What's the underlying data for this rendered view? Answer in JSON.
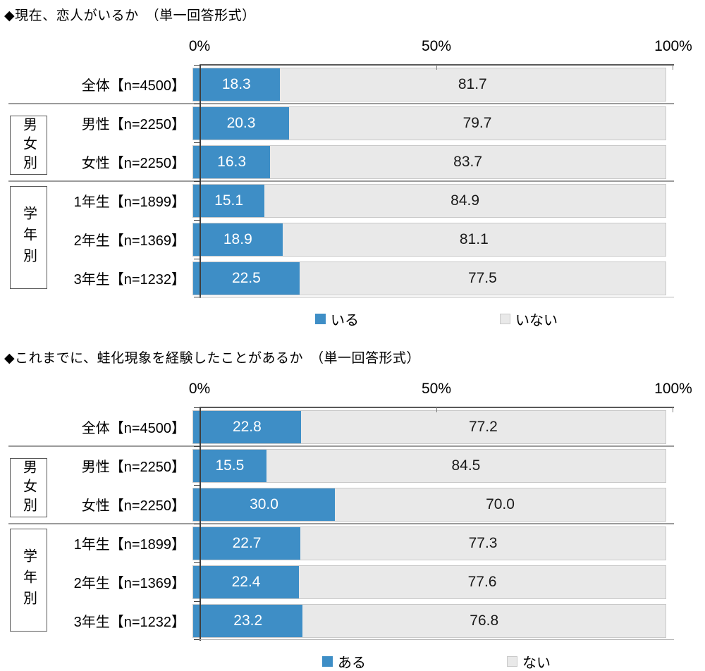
{
  "page_background": "#ffffff",
  "chart_data": [
    {
      "type": "bar",
      "orientation": "horizontal",
      "stacked": true,
      "unit": "%",
      "title": "◆現在、恋人がいるか　（単一回答形式）",
      "axis_ticks": [
        "0%",
        "50%",
        "100%"
      ],
      "xlim": [
        0,
        100
      ],
      "grid": false,
      "legend_position": "bottom",
      "categories": [
        "全体【n=4500】",
        "男性【n=2250】",
        "女性【n=2250】",
        "1年生【n=1899】",
        "2年生【n=1369】",
        "3年生【n=1232】"
      ],
      "group_labels": [
        {
          "label": "男女別",
          "rows": [
            1,
            2
          ]
        },
        {
          "label": "学年別",
          "rows": [
            3,
            5
          ]
        }
      ],
      "series": [
        {
          "name": "いる",
          "color": "#3e8ec6",
          "text_color": "#ffffff",
          "values": [
            18.3,
            20.3,
            16.3,
            15.1,
            18.9,
            22.5
          ]
        },
        {
          "name": "いない",
          "color": "#e9e9e9",
          "text_color": "#1a1a1a",
          "values": [
            81.7,
            79.7,
            83.7,
            84.9,
            81.1,
            77.5
          ]
        }
      ]
    },
    {
      "type": "bar",
      "orientation": "horizontal",
      "stacked": true,
      "unit": "%",
      "title": "◆これまでに、蛙化現象を経験したことがあるか　（単一回答形式）",
      "axis_ticks": [
        "0%",
        "50%",
        "100%"
      ],
      "xlim": [
        0,
        100
      ],
      "grid": false,
      "legend_position": "bottom",
      "categories": [
        "全体【n=4500】",
        "男性【n=2250】",
        "女性【n=2250】",
        "1年生【n=1899】",
        "2年生【n=1369】",
        "3年生【n=1232】"
      ],
      "group_labels": [
        {
          "label": "男女別",
          "rows": [
            1,
            2
          ]
        },
        {
          "label": "学年別",
          "rows": [
            3,
            5
          ]
        }
      ],
      "series": [
        {
          "name": "ある",
          "color": "#3e8ec6",
          "text_color": "#ffffff",
          "values": [
            22.8,
            15.5,
            30.0,
            22.7,
            22.4,
            23.2
          ]
        },
        {
          "name": "ない",
          "color": "#e9e9e9",
          "text_color": "#1a1a1a",
          "values": [
            77.2,
            84.5,
            70.0,
            77.3,
            77.6,
            76.8
          ]
        }
      ]
    }
  ]
}
